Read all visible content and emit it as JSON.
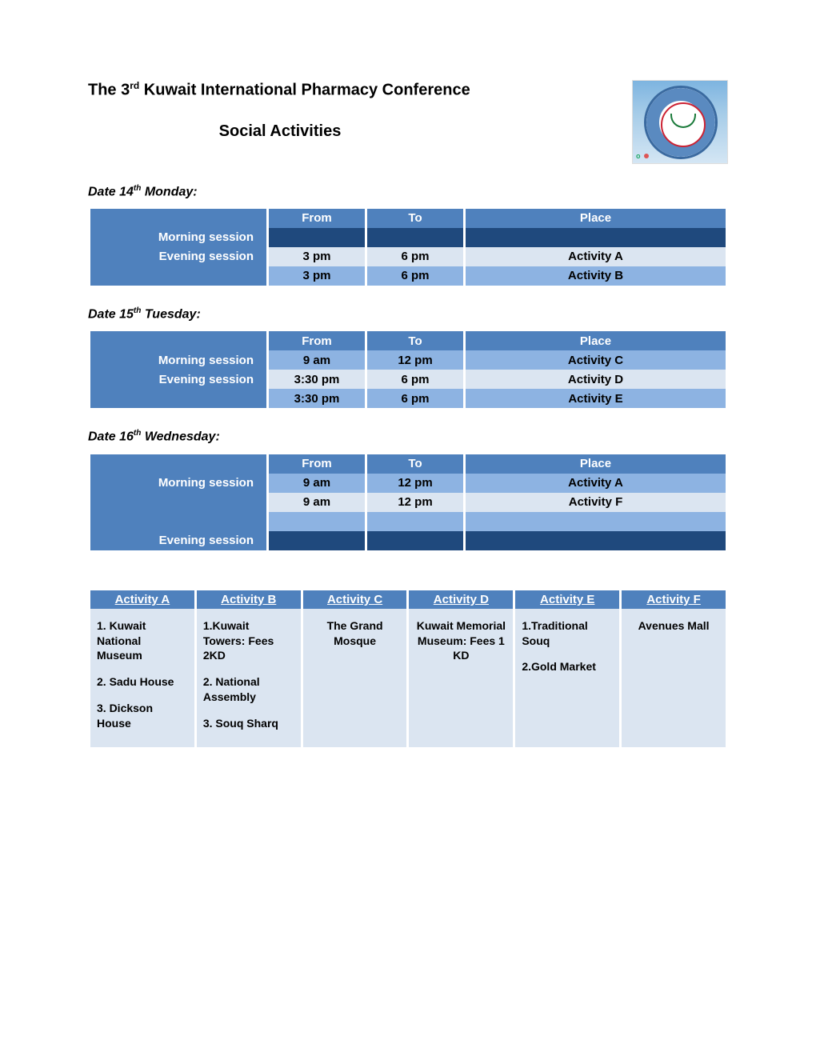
{
  "title_pre": "The 3",
  "title_sup": "rd",
  "title_post": " Kuwait International Pharmacy Conference",
  "subtitle": "Social Activities",
  "colors": {
    "header_bg": "#4f81bd",
    "header_fg": "#ffffff",
    "row_dark_bg": "#1f497d",
    "row_med_bg": "#8db3e2",
    "row_light_bg": "#dbe5f1",
    "text": "#000000"
  },
  "columns": {
    "from": "From",
    "to": "To",
    "place": "Place"
  },
  "days": [
    {
      "label_pre": "Date 14",
      "label_sup": "th",
      "label_post": " Monday:",
      "rows": [
        {
          "style": "dark",
          "session": "Morning session",
          "from": "",
          "to": "",
          "place": ""
        },
        {
          "style": "light",
          "session": "Evening session",
          "from": "3 pm",
          "to": "6 pm",
          "place": "Activity A"
        },
        {
          "style": "med",
          "session": "",
          "from": "3 pm",
          "to": "6 pm",
          "place": "Activity B"
        }
      ]
    },
    {
      "label_pre": "Date 15",
      "label_sup": "th",
      "label_post": " Tuesday:",
      "rows": [
        {
          "style": "med",
          "session": "Morning session",
          "from": "9 am",
          "to": "12 pm",
          "place": "Activity C"
        },
        {
          "style": "light",
          "session": "Evening session",
          "from": "3:30 pm",
          "to": "6 pm",
          "place": "Activity D"
        },
        {
          "style": "med",
          "session": "",
          "from": "3:30 pm",
          "to": "6 pm",
          "place": "Activity E"
        }
      ]
    },
    {
      "label_pre": "Date 16",
      "label_sup": "th",
      "label_post": " Wednesday:",
      "rows": [
        {
          "style": "med",
          "session": "Morning session",
          "from": "9 am",
          "to": "12 pm",
          "place": "Activity A"
        },
        {
          "style": "light",
          "session": "",
          "from": "9 am",
          "to": "12 pm",
          "place": "Activity F"
        },
        {
          "style": "empty-med",
          "session": "",
          "from": "",
          "to": "",
          "place": ""
        },
        {
          "style": "dark",
          "session": "Evening session",
          "from": "",
          "to": "",
          "place": ""
        }
      ]
    }
  ],
  "activities": {
    "headers": [
      "Activity A",
      "Activity B",
      "Activity C",
      "Activity D",
      "Activity E",
      "Activity F"
    ],
    "cells": [
      [
        "1. Kuwait National Museum",
        "2. Sadu House",
        "3. Dickson House"
      ],
      [
        "1.Kuwait Towers: Fees 2KD",
        "2. National Assembly",
        "3. Souq Sharq"
      ],
      [
        "The Grand Mosque"
      ],
      [
        "Kuwait Memorial Museum: Fees 1 KD"
      ],
      [
        "1.Traditional Souq",
        "2.Gold Market"
      ],
      [
        "Avenues Mall"
      ]
    ],
    "align": [
      "left",
      "left",
      "center",
      "center",
      "left",
      "center"
    ]
  }
}
